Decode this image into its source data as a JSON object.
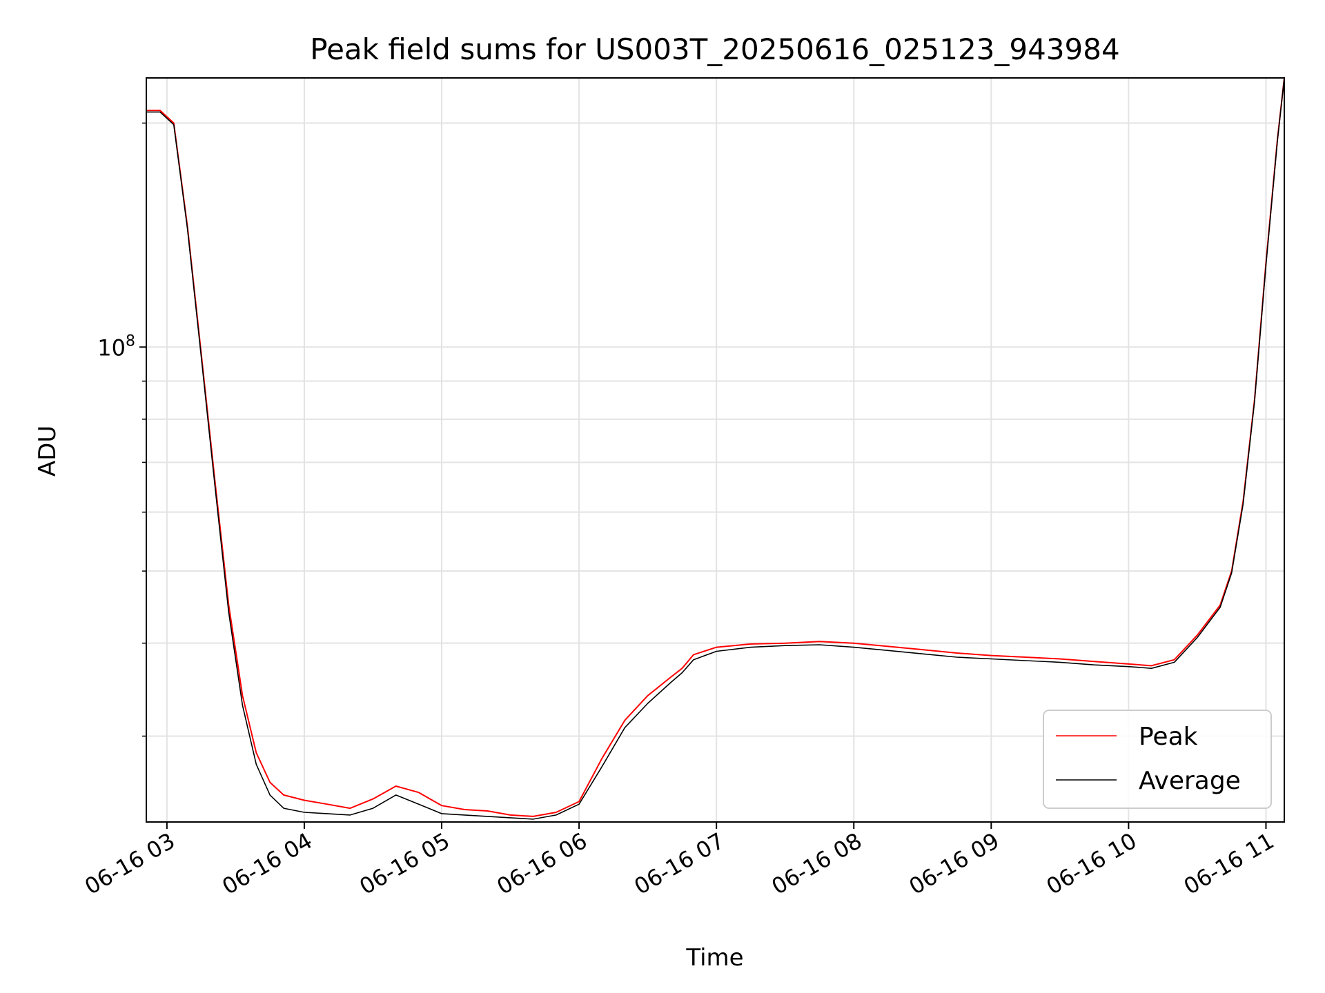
{
  "chart_data": {
    "type": "line",
    "title": "Peak field sums for US003T_20250616_025123_943984",
    "xlabel": "Time",
    "ylabel": "ADU",
    "x_scale": "time",
    "y_scale": "log",
    "xlim": [
      "06-16 02:51",
      "06-16 11:08"
    ],
    "ylim": [
      23000000,
      230000000
    ],
    "x_tick_labels": [
      "06-16 03",
      "06-16 04",
      "06-16 05",
      "06-16 06",
      "06-16 07",
      "06-16 08",
      "06-16 09",
      "06-16 10",
      "06-16 11"
    ],
    "y_tick_labels": [
      {
        "base": "10",
        "exp": "8"
      }
    ],
    "grid": true,
    "legend_position": "lower-right",
    "series": [
      {
        "name": "Peak",
        "color": "#ff0000",
        "x": [
          "06-16 02:51",
          "06-16 02:57",
          "06-16 03:03",
          "06-16 03:09",
          "06-16 03:15",
          "06-16 03:21",
          "06-16 03:27",
          "06-16 03:33",
          "06-16 03:39",
          "06-16 03:45",
          "06-16 03:51",
          "06-16 04:00",
          "06-16 04:10",
          "06-16 04:20",
          "06-16 04:30",
          "06-16 04:40",
          "06-16 04:50",
          "06-16 05:00",
          "06-16 05:10",
          "06-16 05:20",
          "06-16 05:30",
          "06-16 05:40",
          "06-16 05:50",
          "06-16 06:00",
          "06-16 06:10",
          "06-16 06:20",
          "06-16 06:30",
          "06-16 06:40",
          "06-16 06:45",
          "06-16 06:50",
          "06-16 07:00",
          "06-16 07:15",
          "06-16 07:30",
          "06-16 07:45",
          "06-16 08:00",
          "06-16 08:15",
          "06-16 08:30",
          "06-16 08:45",
          "06-16 09:00",
          "06-16 09:15",
          "06-16 09:30",
          "06-16 09:45",
          "06-16 10:00",
          "06-16 10:10",
          "06-16 10:20",
          "06-16 10:30",
          "06-16 10:40",
          "06-16 10:45",
          "06-16 10:50",
          "06-16 10:55",
          "06-16 11:00",
          "06-16 11:05",
          "06-16 11:08"
        ],
        "y": [
          208000000,
          208000000,
          200000000,
          145000000,
          98000000,
          66000000,
          45000000,
          34000000,
          28500000,
          26000000,
          25000000,
          24600000,
          24300000,
          24000000,
          24700000,
          25700000,
          25200000,
          24200000,
          23900000,
          23800000,
          23500000,
          23400000,
          23700000,
          24500000,
          28000000,
          31500000,
          34000000,
          36000000,
          37000000,
          38600000,
          39500000,
          39900000,
          40000000,
          40200000,
          40000000,
          39600000,
          39200000,
          38800000,
          38500000,
          38300000,
          38100000,
          37800000,
          37500000,
          37300000,
          38000000,
          41000000,
          45000000,
          50000000,
          62000000,
          85000000,
          130000000,
          190000000,
          230000000
        ]
      },
      {
        "name": "Average",
        "color": "#000000",
        "x": [
          "06-16 02:51",
          "06-16 02:57",
          "06-16 03:03",
          "06-16 03:09",
          "06-16 03:15",
          "06-16 03:21",
          "06-16 03:27",
          "06-16 03:33",
          "06-16 03:39",
          "06-16 03:45",
          "06-16 03:51",
          "06-16 04:00",
          "06-16 04:10",
          "06-16 04:20",
          "06-16 04:30",
          "06-16 04:40",
          "06-16 04:50",
          "06-16 05:00",
          "06-16 05:10",
          "06-16 05:20",
          "06-16 05:30",
          "06-16 05:40",
          "06-16 05:50",
          "06-16 06:00",
          "06-16 06:10",
          "06-16 06:20",
          "06-16 06:30",
          "06-16 06:40",
          "06-16 06:45",
          "06-16 06:50",
          "06-16 07:00",
          "06-16 07:15",
          "06-16 07:30",
          "06-16 07:45",
          "06-16 08:00",
          "06-16 08:15",
          "06-16 08:30",
          "06-16 08:45",
          "06-16 09:00",
          "06-16 09:15",
          "06-16 09:30",
          "06-16 09:45",
          "06-16 10:00",
          "06-16 10:10",
          "06-16 10:20",
          "06-16 10:30",
          "06-16 10:40",
          "06-16 10:45",
          "06-16 10:50",
          "06-16 10:55",
          "06-16 11:00",
          "06-16 11:05",
          "06-16 11:08"
        ],
        "y": [
          207000000,
          207000000,
          199000000,
          144000000,
          97000000,
          65000000,
          44000000,
          33000000,
          27500000,
          25000000,
          24000000,
          23700000,
          23600000,
          23500000,
          24000000,
          25000000,
          24300000,
          23600000,
          23500000,
          23400000,
          23300000,
          23200000,
          23500000,
          24300000,
          27300000,
          30800000,
          33200000,
          35400000,
          36500000,
          38000000,
          39000000,
          39500000,
          39700000,
          39800000,
          39500000,
          39100000,
          38700000,
          38300000,
          38100000,
          37900000,
          37700000,
          37400000,
          37200000,
          37000000,
          37700000,
          40700000,
          44700000,
          49700000,
          61500000,
          84500000,
          129000000,
          189000000,
          230000000
        ]
      }
    ]
  }
}
